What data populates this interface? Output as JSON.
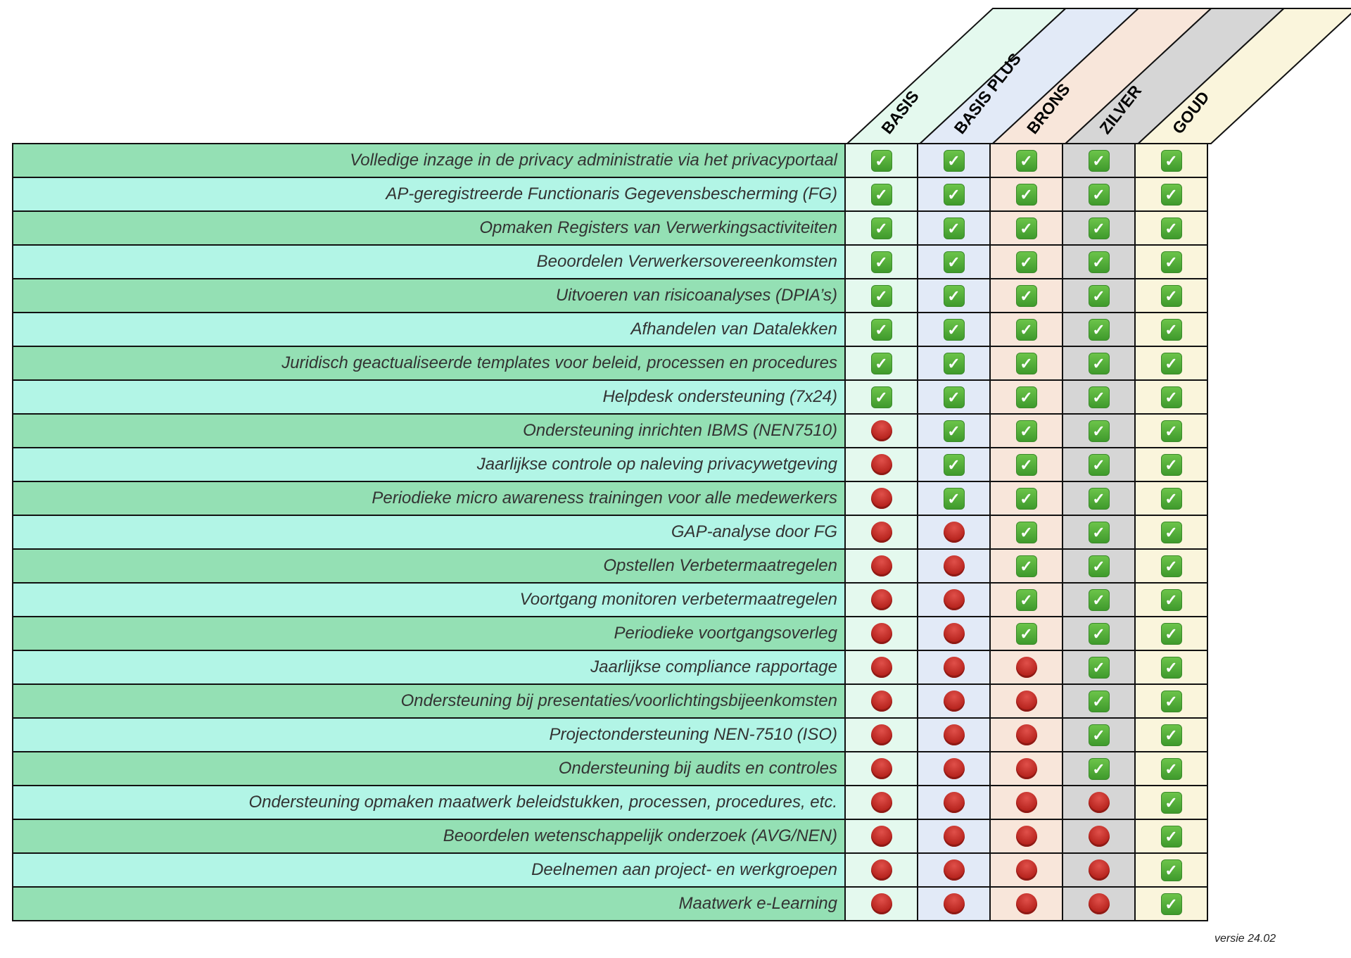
{
  "tiers": [
    "BASIS",
    "BASIS PLUS",
    "BRONS",
    "ZILVER",
    "GOUD"
  ],
  "icons": {
    "available": "check-mark-icon",
    "unavailable": "red-circle-icon"
  },
  "colors": {
    "row_dark": "#94e0b4",
    "row_light": "#b2f5e6",
    "basis": "#e4f9ee",
    "basis_plus": "#e2eaf7",
    "brons": "#f8e6da",
    "zilver": "#d6d6d6",
    "goud": "#faf5dc"
  },
  "rows": [
    {
      "label": "Volledige inzage in de privacy administratie via het privacyportaal",
      "available": [
        true,
        true,
        true,
        true,
        true
      ]
    },
    {
      "label": "AP-geregistreerde Functionaris Gegevensbescherming (FG)",
      "available": [
        true,
        true,
        true,
        true,
        true
      ]
    },
    {
      "label": "Opmaken Registers van Verwerkingsactiviteiten",
      "available": [
        true,
        true,
        true,
        true,
        true
      ]
    },
    {
      "label": "Beoordelen Verwerkersovereenkomsten",
      "available": [
        true,
        true,
        true,
        true,
        true
      ]
    },
    {
      "label": "Uitvoeren van risicoanalyses (DPIA’s)",
      "available": [
        true,
        true,
        true,
        true,
        true
      ]
    },
    {
      "label": "Afhandelen van Datalekken",
      "available": [
        true,
        true,
        true,
        true,
        true
      ]
    },
    {
      "label": "Juridisch geactualiseerde templates voor beleid, processen en procedures",
      "available": [
        true,
        true,
        true,
        true,
        true
      ]
    },
    {
      "label": "Helpdesk ondersteuning (7x24)",
      "available": [
        true,
        true,
        true,
        true,
        true
      ]
    },
    {
      "label": "Ondersteuning inrichten IBMS (NEN7510)",
      "available": [
        false,
        true,
        true,
        true,
        true
      ]
    },
    {
      "label": "Jaarlijkse controle op naleving privacywetgeving",
      "available": [
        false,
        true,
        true,
        true,
        true
      ]
    },
    {
      "label": "Periodieke micro awareness trainingen voor alle medewerkers",
      "available": [
        false,
        true,
        true,
        true,
        true
      ]
    },
    {
      "label": "GAP-analyse door FG",
      "available": [
        false,
        false,
        true,
        true,
        true
      ]
    },
    {
      "label": "Opstellen Verbetermaatregelen",
      "available": [
        false,
        false,
        true,
        true,
        true
      ]
    },
    {
      "label": "Voortgang monitoren verbetermaatregelen",
      "available": [
        false,
        false,
        true,
        true,
        true
      ]
    },
    {
      "label": "Periodieke voortgangsoverleg",
      "available": [
        false,
        false,
        true,
        true,
        true
      ]
    },
    {
      "label": "Jaarlijkse compliance rapportage",
      "available": [
        false,
        false,
        false,
        true,
        true
      ]
    },
    {
      "label": "Ondersteuning bij presentaties/voorlichtingsbijeenkomsten",
      "available": [
        false,
        false,
        false,
        true,
        true
      ]
    },
    {
      "label": "Projectondersteuning NEN-7510 (ISO)",
      "available": [
        false,
        false,
        false,
        true,
        true
      ]
    },
    {
      "label": "Ondersteuning bij audits en controles",
      "available": [
        false,
        false,
        false,
        true,
        true
      ]
    },
    {
      "label": "Ondersteuning opmaken maatwerk beleidstukken, processen, procedures, etc.",
      "available": [
        false,
        false,
        false,
        false,
        true
      ]
    },
    {
      "label": "Beoordelen wetenschappelijk onderzoek (AVG/NEN)",
      "available": [
        false,
        false,
        false,
        false,
        true
      ]
    },
    {
      "label": "Deelnemen aan project- en werkgroepen",
      "available": [
        false,
        false,
        false,
        false,
        true
      ]
    },
    {
      "label": "Maatwerk e-Learning",
      "available": [
        false,
        false,
        false,
        false,
        true
      ]
    }
  ],
  "version": "versie 24.02"
}
